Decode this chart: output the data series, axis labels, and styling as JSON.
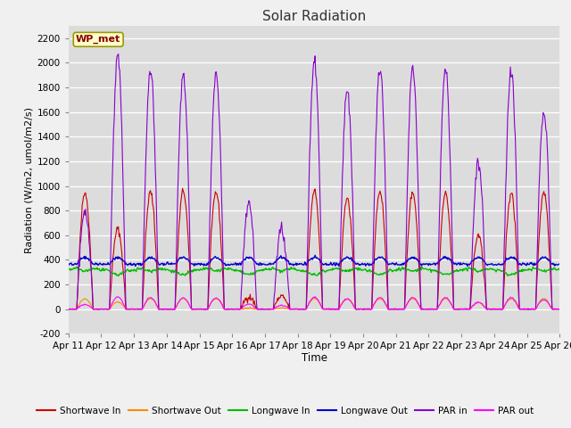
{
  "title": "Solar Radiation",
  "xlabel": "Time",
  "ylabel": "Radiation (W/m2, umol/m2/s)",
  "ylim": [
    -200,
    2300
  ],
  "yticks": [
    -200,
    0,
    200,
    400,
    600,
    800,
    1000,
    1200,
    1400,
    1600,
    1800,
    2000,
    2200
  ],
  "date_labels": [
    "Apr 11",
    "Apr 12",
    "Apr 13",
    "Apr 14",
    "Apr 15",
    "Apr 16",
    "Apr 17",
    "Apr 18",
    "Apr 19",
    "Apr 20",
    "Apr 21",
    "Apr 22",
    "Apr 23",
    "Apr 24",
    "Apr 25",
    "Apr 26"
  ],
  "colors": {
    "shortwave_in": "#cc0000",
    "shortwave_out": "#ff8800",
    "longwave_in": "#00bb00",
    "longwave_out": "#0000cc",
    "par_in": "#8800cc",
    "par_out": "#ff00ff"
  },
  "legend_labels": [
    "Shortwave In",
    "Shortwave Out",
    "Longwave In",
    "Longwave Out",
    "PAR in",
    "PAR out"
  ],
  "station_label": "WP_met",
  "fig_bg_color": "#f0f0f0",
  "plot_bg_color": "#dcdcdc",
  "n_days": 15,
  "sw_in_peaks": [
    950,
    650,
    950,
    960,
    950,
    100,
    100,
    960,
    900,
    960,
    950,
    940,
    600,
    940,
    950
  ],
  "par_in_peaks": [
    800,
    2050,
    1950,
    1900,
    1900,
    870,
    650,
    2000,
    1780,
    1950,
    1950,
    1930,
    1200,
    1930,
    1600
  ]
}
